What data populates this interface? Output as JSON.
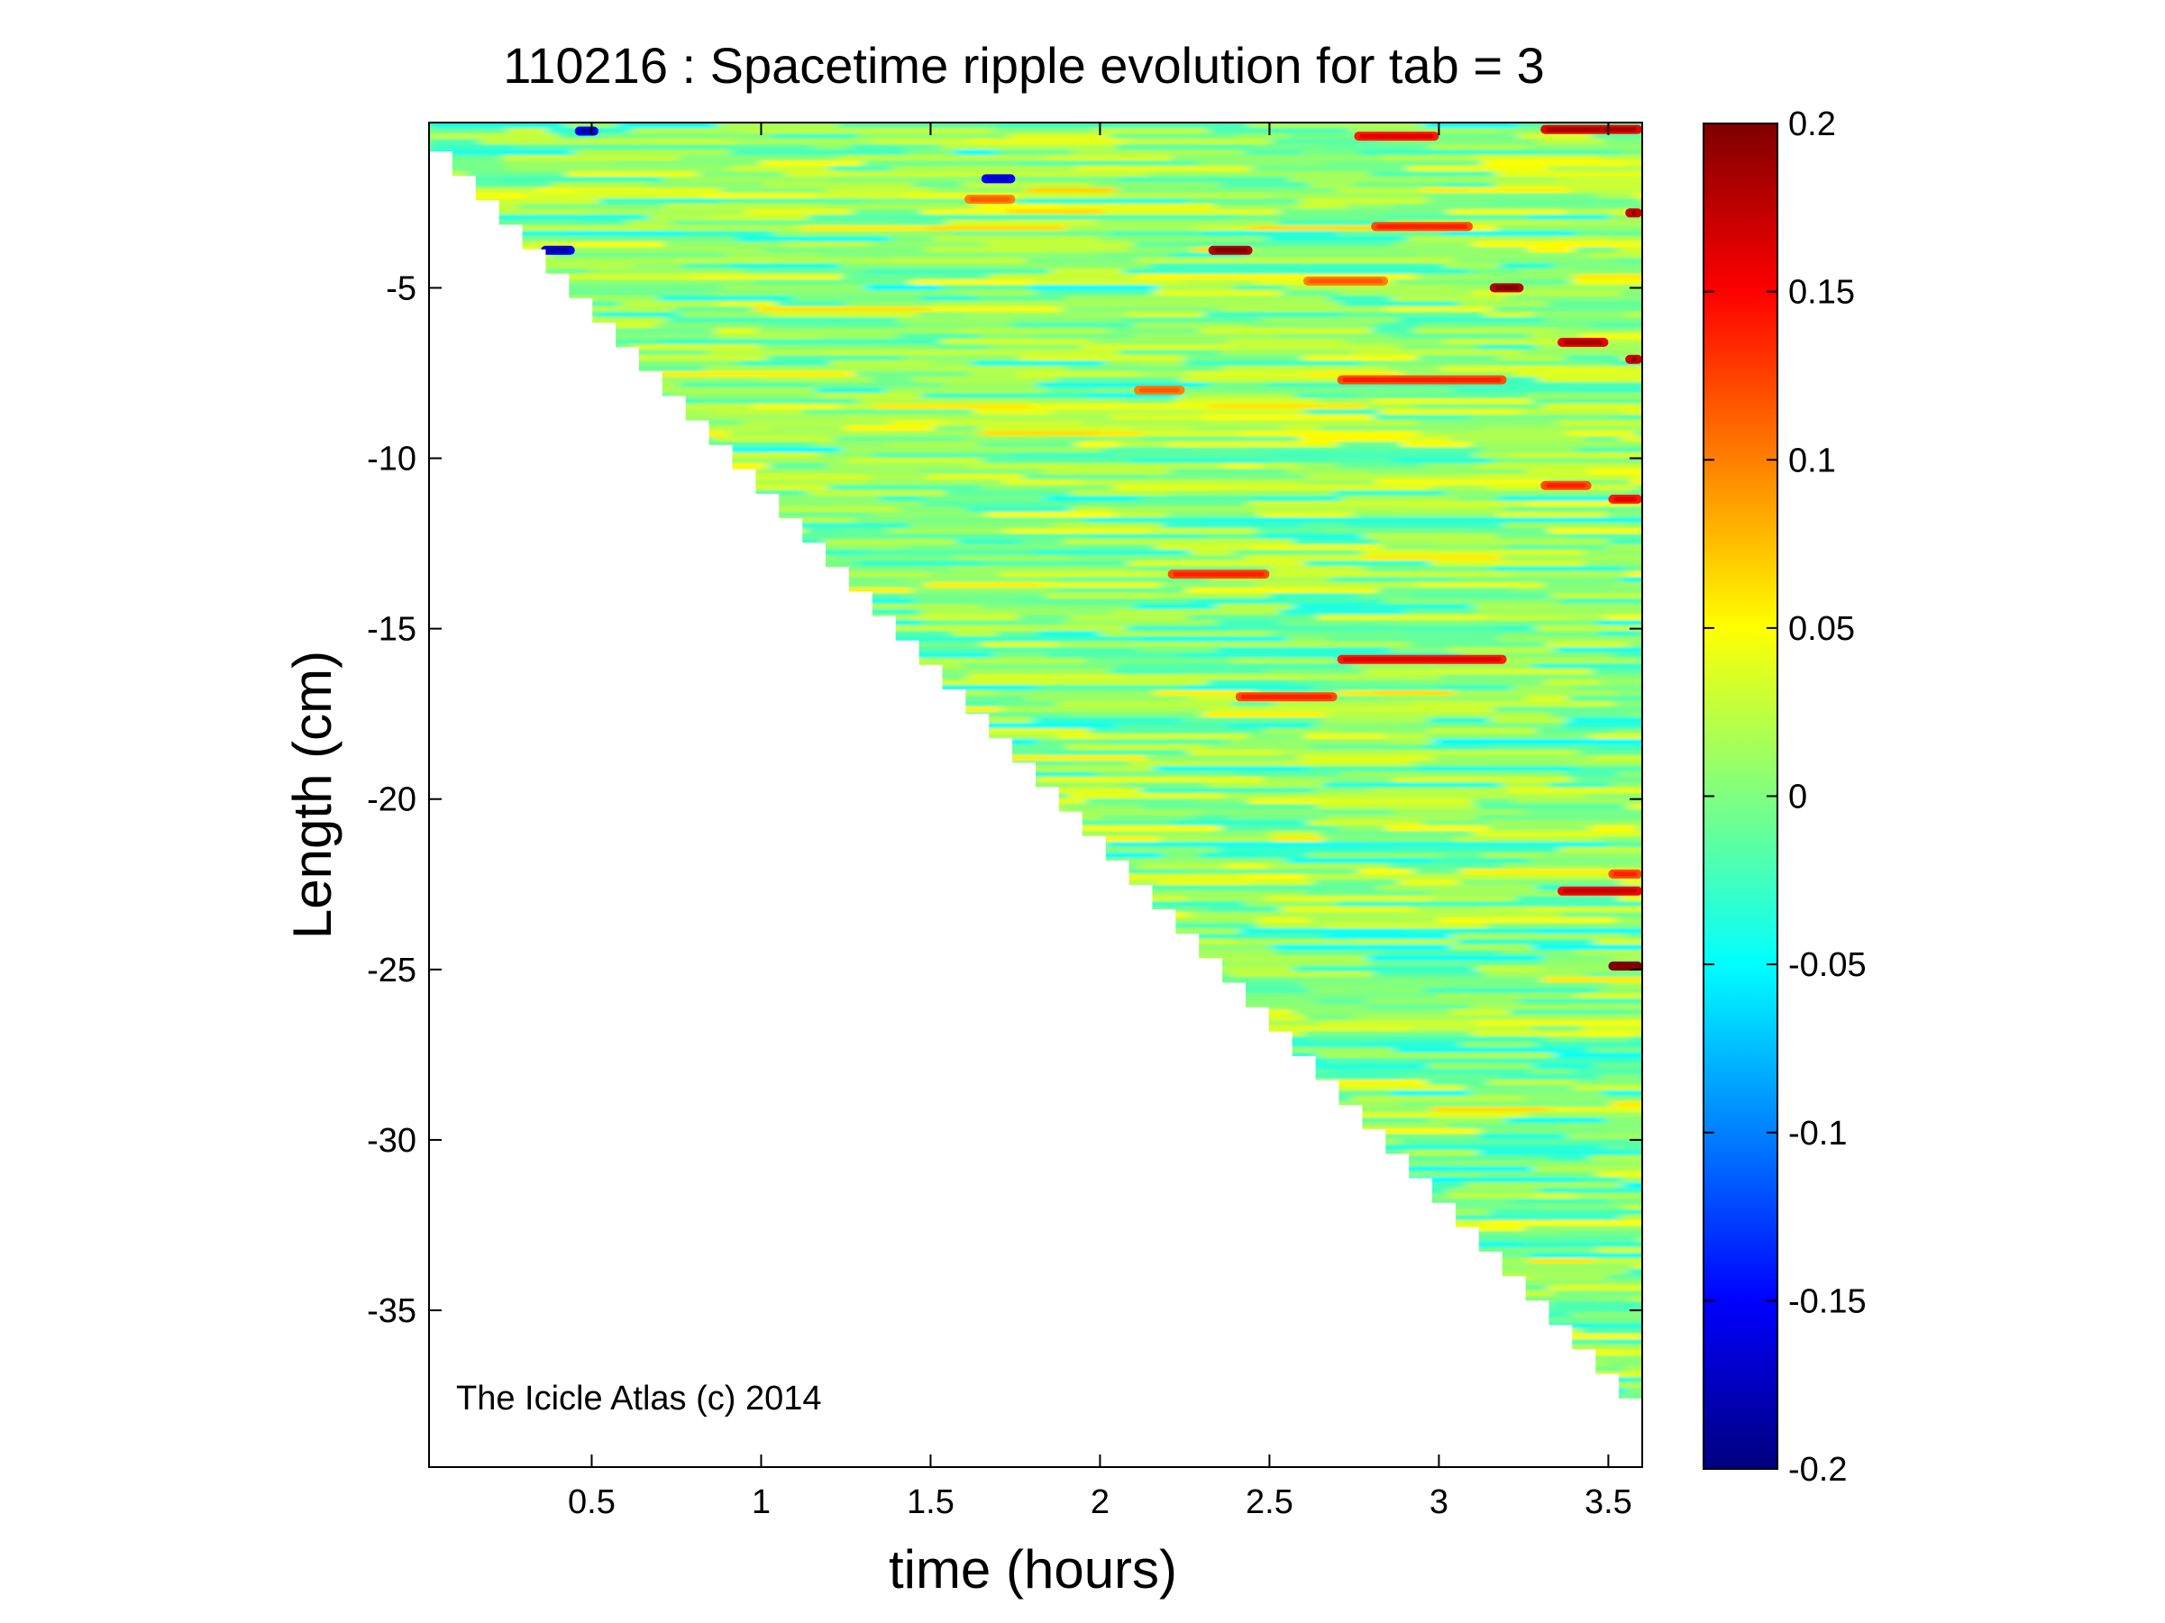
{
  "chart_data": {
    "type": "heatmap",
    "title": "110216 : Spacetime ripple evolution for tab = 3",
    "xlabel": "time (hours)",
    "ylabel": "Length (cm)",
    "xlim": [
      0.02,
      3.6
    ],
    "ylim": [
      -39.6,
      -0.15
    ],
    "x_ticks": [
      0.5,
      1,
      1.5,
      2,
      2.5,
      3,
      3.5
    ],
    "x_tick_labels": [
      "0.5",
      "1",
      "1.5",
      "2",
      "2.5",
      "3",
      "3.5"
    ],
    "y_ticks": [
      -5,
      -10,
      -15,
      -20,
      -25,
      -30,
      -35
    ],
    "y_tick_labels": [
      "-5",
      "-10",
      "-15",
      "-20",
      "-25",
      "-30",
      "-35"
    ],
    "annotation": "The Icicle Atlas (c) 2014",
    "colormap": "jet",
    "clim": [
      -0.2,
      0.2
    ],
    "colorbar_ticks": [
      0.2,
      0.15,
      0.1,
      0.05,
      0,
      -0.05,
      -0.1,
      -0.15,
      -0.2
    ],
    "colorbar_tick_labels": [
      "0.2",
      "0.15",
      "0.1",
      "0.05",
      "0",
      "-0.05",
      "-0.1",
      "-0.15",
      "-0.2"
    ],
    "data_region": {
      "description_of_values": "ripple amplitude",
      "lower_edge_boundary": [
        [
          0.02,
          -1.0
        ],
        [
          3.6,
          -38.3
        ]
      ]
    },
    "strong_features": [
      {
        "t_start": 2.75,
        "t_end": 3.0,
        "length": -0.55,
        "value": 0.14
      },
      {
        "t_start": 3.3,
        "t_end": 3.6,
        "length": -0.35,
        "value": 0.16
      },
      {
        "t_start": 0.45,
        "t_end": 0.52,
        "length": -0.4,
        "value": -0.16
      },
      {
        "t_start": 1.65,
        "t_end": 1.75,
        "length": -1.8,
        "value": -0.15
      },
      {
        "t_start": 1.6,
        "t_end": 1.75,
        "length": -2.4,
        "value": 0.1
      },
      {
        "t_start": 2.8,
        "t_end": 3.1,
        "length": -3.2,
        "value": 0.12
      },
      {
        "t_start": 3.55,
        "t_end": 3.6,
        "length": -2.8,
        "value": 0.17
      },
      {
        "t_start": 0.35,
        "t_end": 0.45,
        "length": -3.9,
        "value": -0.16
      },
      {
        "t_start": 2.32,
        "t_end": 2.45,
        "length": -3.9,
        "value": 0.18
      },
      {
        "t_start": 3.15,
        "t_end": 3.25,
        "length": -5.0,
        "value": 0.18
      },
      {
        "t_start": 2.6,
        "t_end": 2.85,
        "length": -4.8,
        "value": 0.1
      },
      {
        "t_start": 3.35,
        "t_end": 3.5,
        "length": -6.6,
        "value": 0.16
      },
      {
        "t_start": 3.55,
        "t_end": 3.6,
        "length": -7.1,
        "value": 0.17
      },
      {
        "t_start": 2.7,
        "t_end": 3.2,
        "length": -7.7,
        "value": 0.12
      },
      {
        "t_start": 2.1,
        "t_end": 2.25,
        "length": -8.0,
        "value": 0.1
      },
      {
        "t_start": 3.3,
        "t_end": 3.45,
        "length": -10.8,
        "value": 0.12
      },
      {
        "t_start": 3.5,
        "t_end": 3.6,
        "length": -11.2,
        "value": 0.14
      },
      {
        "t_start": 2.2,
        "t_end": 2.5,
        "length": -13.4,
        "value": 0.12
      },
      {
        "t_start": 2.7,
        "t_end": 3.2,
        "length": -15.9,
        "value": 0.14
      },
      {
        "t_start": 2.4,
        "t_end": 2.7,
        "length": -17.0,
        "value": 0.12
      },
      {
        "t_start": 3.35,
        "t_end": 3.6,
        "length": -22.7,
        "value": 0.15
      },
      {
        "t_start": 3.5,
        "t_end": 3.6,
        "length": -22.2,
        "value": 0.12
      },
      {
        "t_start": 3.5,
        "t_end": 3.6,
        "length": -24.9,
        "value": 0.2
      }
    ]
  }
}
